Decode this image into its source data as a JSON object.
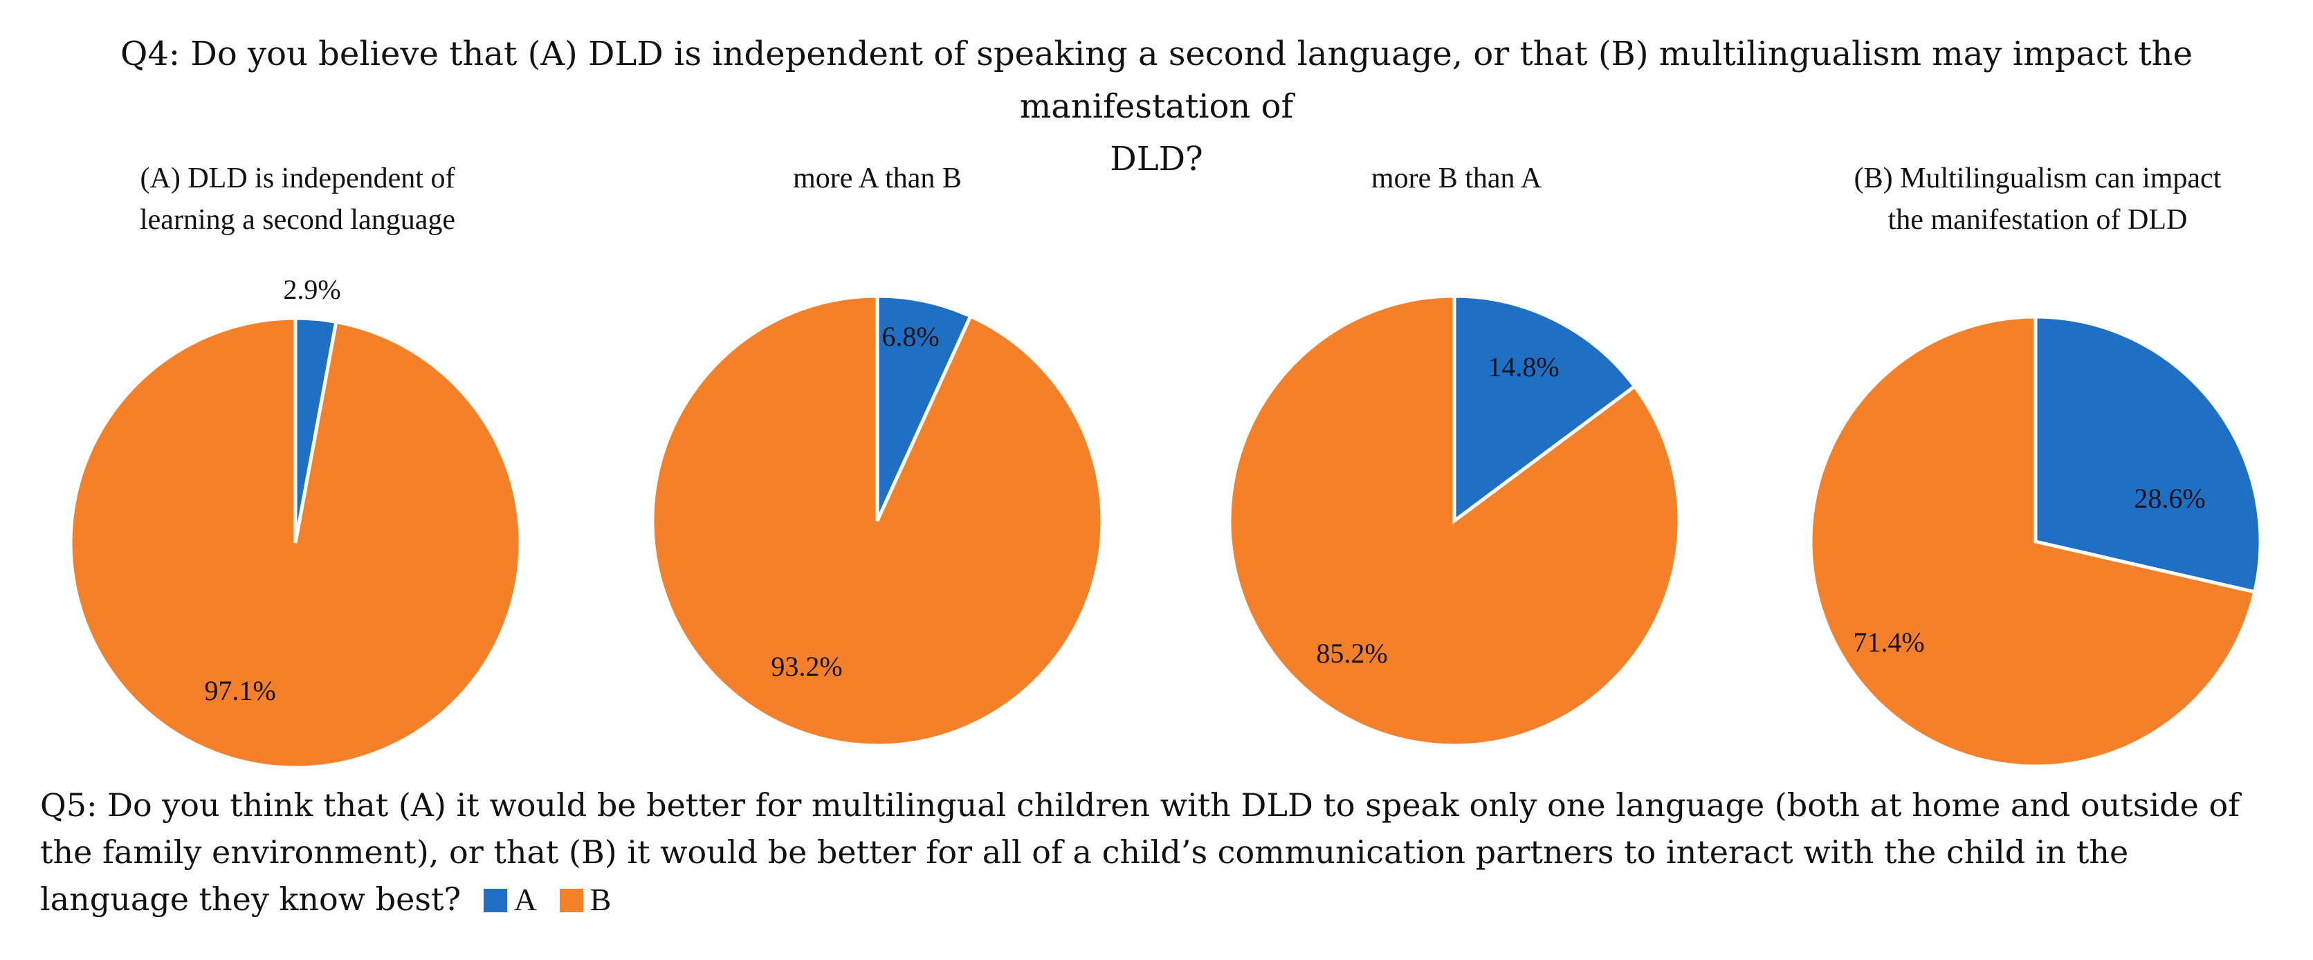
{
  "q4": {
    "title_line1": "Q4: Do you believe that (A) DLD is independent of speaking a second language, or that (B) multilingualism may impact  the manifestation of",
    "title_line2": "DLD?"
  },
  "colors": {
    "A": "#1f6fc5",
    "B": "#f5802a"
  },
  "chart_data": [
    {
      "type": "pie",
      "title_lines": [
        "(A) DLD is independent of",
        "learning a second language"
      ],
      "categories": [
        "A",
        "B"
      ],
      "values": [
        2.9,
        97.1
      ],
      "labels": [
        "2.9%",
        "97.1%"
      ]
    },
    {
      "type": "pie",
      "title_lines": [
        "more A than B"
      ],
      "categories": [
        "A",
        "B"
      ],
      "values": [
        6.8,
        93.2
      ],
      "labels": [
        "6.8%",
        "93.2%"
      ]
    },
    {
      "type": "pie",
      "title_lines": [
        "more B than A"
      ],
      "categories": [
        "A",
        "B"
      ],
      "values": [
        14.8,
        85.2
      ],
      "labels": [
        "14.8%",
        "85.2%"
      ]
    },
    {
      "type": "pie",
      "title_lines": [
        "(B) Multilingualism  can impact",
        "the manifestation of DLD"
      ],
      "categories": [
        "A",
        "B"
      ],
      "values": [
        28.6,
        71.4
      ],
      "labels": [
        "28.6%",
        "71.4%"
      ]
    }
  ],
  "q5": {
    "line1": "Q5: Do you think that (A) it would be better for multilingual children with DLD to speak only one language (both at home and outside of",
    "line2": "the family environment), or that (B) it would be better for all of a child’s communication partners to interact with the child in the",
    "line3": "language they know best?"
  },
  "legend": {
    "a_label": "A",
    "b_label": "B"
  }
}
